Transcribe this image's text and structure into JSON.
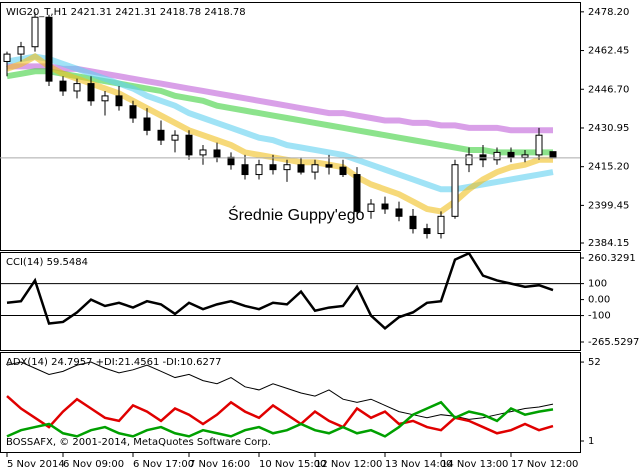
{
  "chart_data": [
    {
      "type": "candlestick",
      "title": "WIG20_T,H1  2421.31 2421.31 2418.78 2418.78",
      "annotation": "Średnie Guppy'ego",
      "ylim": [
        2381.3,
        2482.2
      ],
      "yticks": [
        {
          "value": 2478.2,
          "label": "2478.20"
        },
        2462.45,
        {
          "value": 2446.7,
          "label": "2446.70"
        },
        2430.95,
        {
          "value": 2415.2,
          "label": "2415.20"
        },
        2399.45,
        2384.15
      ],
      "price_line": 2418.78,
      "open": [
        2458,
        2461,
        2464,
        2476,
        2450,
        2446,
        2449,
        2442,
        2444,
        2440,
        2435,
        2430,
        2426,
        2428,
        2420,
        2422,
        2419,
        2416,
        2412,
        2416,
        2414,
        2416,
        2413,
        2416,
        2415,
        2412,
        2397,
        2400,
        2398,
        2395,
        2390,
        2388,
        2395,
        2416,
        2420,
        2418,
        2421,
        2419,
        2420,
        2421.31
      ],
      "high": [
        2462,
        2466,
        2478,
        2477,
        2452,
        2451,
        2452,
        2446,
        2448,
        2442,
        2439,
        2434,
        2430,
        2430,
        2424,
        2425,
        2421,
        2420,
        2418,
        2420,
        2418,
        2419,
        2418,
        2420,
        2418,
        2415,
        2402,
        2403,
        2401,
        2398,
        2392,
        2397,
        2418,
        2423,
        2424,
        2423,
        2423,
        2422,
        2431,
        2421.31
      ],
      "low": [
        2452,
        2458,
        2462,
        2448,
        2444,
        2443,
        2440,
        2436,
        2438,
        2433,
        2428,
        2424,
        2421,
        2418,
        2416,
        2417,
        2414,
        2410,
        2410,
        2412,
        2409,
        2412,
        2410,
        2412,
        2411,
        2395,
        2394,
        2396,
        2393,
        2388,
        2386,
        2386,
        2394,
        2413,
        2415,
        2416,
        2417,
        2417,
        2418,
        2418.78
      ],
      "close": [
        2461,
        2464,
        2476,
        2450,
        2446,
        2449,
        2442,
        2444,
        2440,
        2435,
        2430,
        2426,
        2428,
        2420,
        2422,
        2419,
        2416,
        2412,
        2416,
        2414,
        2416,
        2413,
        2416,
        2415,
        2412,
        2397,
        2400,
        2398,
        2395,
        2390,
        2388,
        2395,
        2416,
        2420,
        2418,
        2421,
        2419,
        2420,
        2428,
        2418.78
      ],
      "series": [
        {
          "color": "#c060d8",
          "values": [
            2456,
            2456,
            2456,
            2456,
            2455,
            2455,
            2454,
            2453,
            2452,
            2451,
            2450,
            2449,
            2448,
            2447,
            2446,
            2445,
            2444,
            2443,
            2442,
            2441,
            2440,
            2439,
            2438,
            2437,
            2437,
            2436,
            2435,
            2434,
            2434,
            2433,
            2433,
            2432,
            2432,
            2431,
            2431,
            2431,
            2430,
            2430,
            2430,
            2430
          ]
        },
        {
          "color": "#40d040",
          "values": [
            2452,
            2453,
            2454,
            2454,
            2453,
            2452,
            2451,
            2450,
            2449,
            2448,
            2447,
            2446,
            2444,
            2443,
            2442,
            2440,
            2439,
            2438,
            2437,
            2436,
            2435,
            2434,
            2433,
            2432,
            2431,
            2430,
            2429,
            2428,
            2427,
            2426,
            2425,
            2424,
            2423,
            2422,
            2422,
            2421,
            2421,
            2421,
            2421,
            2421
          ]
        },
        {
          "color": "#60d0f0",
          "values": [
            2458,
            2459,
            2460,
            2459,
            2457,
            2455,
            2453,
            2451,
            2449,
            2447,
            2444,
            2442,
            2440,
            2437,
            2435,
            2433,
            2431,
            2429,
            2427,
            2426,
            2424,
            2423,
            2422,
            2421,
            2420,
            2418,
            2416,
            2414,
            2412,
            2410,
            2408,
            2406,
            2406,
            2407,
            2408,
            2409,
            2410,
            2411,
            2412,
            2413
          ]
        },
        {
          "color": "#f0c020",
          "values": [
            2455,
            2457,
            2460,
            2456,
            2453,
            2451,
            2449,
            2447,
            2445,
            2442,
            2439,
            2436,
            2433,
            2430,
            2428,
            2426,
            2424,
            2421,
            2420,
            2419,
            2418,
            2417,
            2417,
            2416,
            2415,
            2411,
            2408,
            2406,
            2404,
            2401,
            2398,
            2397,
            2401,
            2406,
            2410,
            2413,
            2415,
            2416,
            2418,
            2418
          ]
        }
      ]
    },
    {
      "type": "line",
      "title": "CCI(14) 59.5484",
      "ylim": [
        -315.6,
        297.9
      ],
      "yticks": [
        260.3291,
        100,
        {
          "value": 0,
          "label": "0.00"
        },
        -100,
        -265.5297
      ],
      "levels": [
        100,
        -100
      ],
      "series": [
        {
          "color": "#000000",
          "values": [
            -20,
            -10,
            120,
            -150,
            -140,
            -80,
            0,
            -40,
            -20,
            -50,
            -10,
            -30,
            -90,
            -20,
            -60,
            -30,
            -10,
            -40,
            -60,
            -20,
            -30,
            50,
            -70,
            -50,
            -40,
            80,
            -100,
            -180,
            -110,
            -80,
            -20,
            -10,
            250,
            290,
            150,
            120,
            100,
            80,
            90,
            59.5484
          ]
        }
      ]
    },
    {
      "type": "line",
      "title": "ADX(14) 24.7957 +DI:21.4561 -DI:10.6277",
      "footer": "BOSSAFX, © 2001-2014, MetaQuotes Software Corp.",
      "ylim": [
        -6.1,
        58.5
      ],
      "yticks": [
        52,
        1
      ],
      "xticks": [
        {
          "value": 0,
          "label": "5 Nov 2014"
        },
        {
          "value": 4,
          "label": "6 Nov 09:00"
        },
        {
          "value": 9,
          "label": "6 Nov 17:00"
        },
        {
          "value": 13,
          "label": "7 Nov 16:00"
        },
        {
          "value": 18,
          "label": "10 Nov 15:00"
        },
        {
          "value": 22,
          "label": "12 Nov 12:00"
        },
        {
          "value": 27,
          "label": "13 Nov 14:00"
        },
        {
          "value": 31,
          "label": "14 Nov 13:00"
        },
        {
          "value": 36,
          "label": "17 Nov 12:00"
        }
      ],
      "series": [
        {
          "color": "#000000",
          "values": [
            50,
            52,
            48,
            44,
            46,
            50,
            52,
            48,
            45,
            47,
            50,
            46,
            42,
            44,
            40,
            38,
            42,
            36,
            34,
            38,
            35,
            32,
            30,
            34,
            28,
            26,
            28,
            24,
            20,
            18,
            16,
            18,
            17,
            15,
            16,
            18,
            20,
            22,
            23,
            24.7957
          ]
        },
        {
          "color": "#e00000",
          "values": [
            30,
            22,
            16,
            10,
            20,
            28,
            22,
            16,
            14,
            24,
            20,
            14,
            22,
            18,
            12,
            18,
            26,
            20,
            16,
            24,
            18,
            12,
            20,
            14,
            10,
            22,
            16,
            20,
            12,
            14,
            10,
            8,
            16,
            14,
            10,
            6,
            8,
            12,
            8,
            10.6277
          ]
        },
        {
          "color": "#00a000",
          "values": [
            4,
            8,
            10,
            12,
            6,
            4,
            8,
            10,
            6,
            4,
            8,
            10,
            6,
            4,
            8,
            6,
            4,
            8,
            10,
            6,
            8,
            12,
            8,
            6,
            10,
            6,
            8,
            4,
            10,
            18,
            22,
            26,
            16,
            20,
            18,
            14,
            22,
            18,
            20,
            21.4561
          ]
        }
      ]
    }
  ]
}
